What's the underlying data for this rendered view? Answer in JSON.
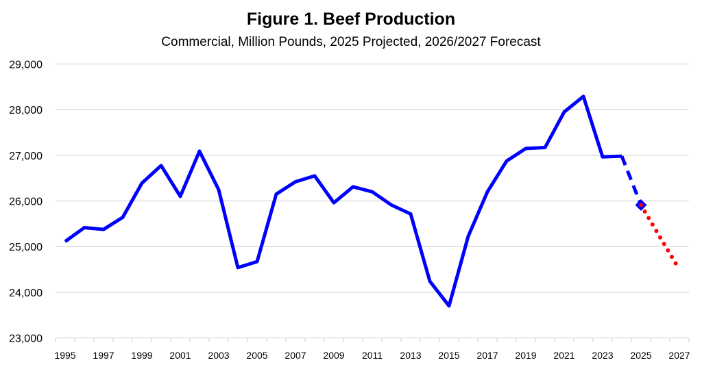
{
  "chart_data": {
    "type": "line",
    "title": "Figure 1. Beef Production",
    "subtitle": "Commercial, Million Pounds, 2025 Projected, 2026/2027 Forecast",
    "xlabel": "",
    "ylabel": "",
    "ylim": [
      23000,
      29000
    ],
    "yticks": [
      "23,000",
      "24,000",
      "25,000",
      "26,000",
      "27,000",
      "28,000",
      "29,000"
    ],
    "ytick_values": [
      23000,
      24000,
      25000,
      26000,
      27000,
      28000,
      29000
    ],
    "xtick_labels": [
      "1995",
      "1997",
      "1999",
      "2001",
      "2003",
      "2005",
      "2007",
      "2009",
      "2011",
      "2013",
      "2015",
      "2017",
      "2019",
      "2021",
      "2023",
      "2025",
      "2027"
    ],
    "grid": true,
    "legend": "none",
    "x": [
      1995,
      1996,
      1997,
      1998,
      1999,
      2000,
      2001,
      2002,
      2003,
      2004,
      2005,
      2006,
      2007,
      2008,
      2009,
      2010,
      2011,
      2012,
      2013,
      2014,
      2015,
      2016,
      2017,
      2018,
      2019,
      2020,
      2021,
      2022,
      2023,
      2024,
      2025,
      2026,
      2027
    ],
    "series": [
      {
        "style": "solid",
        "color": "#0000ff",
        "x": [
          1995,
          1996,
          1997,
          1998,
          1999,
          2000,
          2001,
          2002,
          2003,
          2004,
          2005,
          2006,
          2007,
          2008,
          2009,
          2010,
          2011,
          2012,
          2013,
          2014,
          2015,
          2016,
          2017,
          2018,
          2019,
          2020,
          2021,
          2022,
          2023,
          2024
        ],
        "values": [
          25110,
          25415,
          25375,
          25640,
          26390,
          26775,
          26100,
          27090,
          26245,
          24540,
          24670,
          26150,
          26420,
          26550,
          25960,
          26310,
          26200,
          25910,
          25715,
          24240,
          23700,
          25225,
          26200,
          26875,
          27150,
          27170,
          27950,
          28290,
          26965,
          26980
        ]
      },
      {
        "style": "dashed",
        "color": "#0000ff",
        "x": [
          2024,
          2025
        ],
        "values": [
          26980,
          25910
        ]
      },
      {
        "style": "diamond-marker",
        "color": "#0000ff",
        "x": [
          2025
        ],
        "values": [
          25910
        ]
      },
      {
        "style": "dotted",
        "color": "#ff0000",
        "x": [
          2025,
          2026,
          2027
        ],
        "values": [
          25910,
          25200,
          24500
        ]
      }
    ]
  }
}
